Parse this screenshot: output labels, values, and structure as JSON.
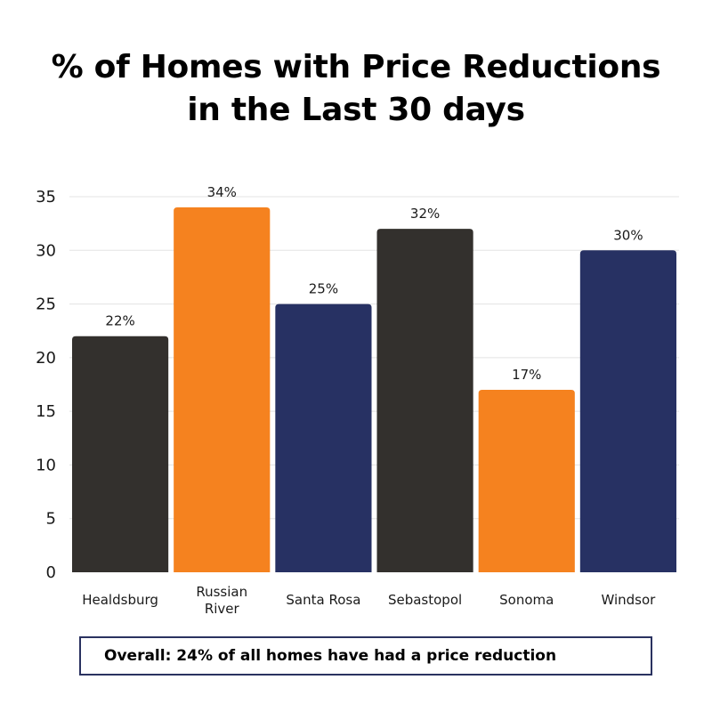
{
  "title_line1": "% of Homes with Price Reductions",
  "title_line2": "in the Last 30 days",
  "summary": "Overall: 24% of all homes have had a price reduction",
  "colors": {
    "dark": "#33302d",
    "orange": "#f5821f",
    "navy": "#273163",
    "border": "#2a3260"
  },
  "chart_data": {
    "type": "bar",
    "title": "% of Homes with Price Reductions in the Last 30 days",
    "xlabel": "",
    "ylabel": "",
    "ylim": [
      0,
      35
    ],
    "yticks": [
      0,
      5,
      10,
      15,
      20,
      25,
      30,
      35
    ],
    "grid": true,
    "categories": [
      [
        "Healdsburg"
      ],
      [
        "Russian",
        "River"
      ],
      [
        "Santa Rosa"
      ],
      [
        "Sebastopol"
      ],
      [
        "Sonoma"
      ],
      [
        "Windsor"
      ]
    ],
    "values": [
      22,
      34,
      25,
      32,
      17,
      30
    ],
    "labels": [
      "22%",
      "34%",
      "25%",
      "32%",
      "17%",
      "30%"
    ],
    "bar_colors": [
      "#33302d",
      "#f5821f",
      "#273163",
      "#33302d",
      "#f5821f",
      "#273163"
    ]
  }
}
